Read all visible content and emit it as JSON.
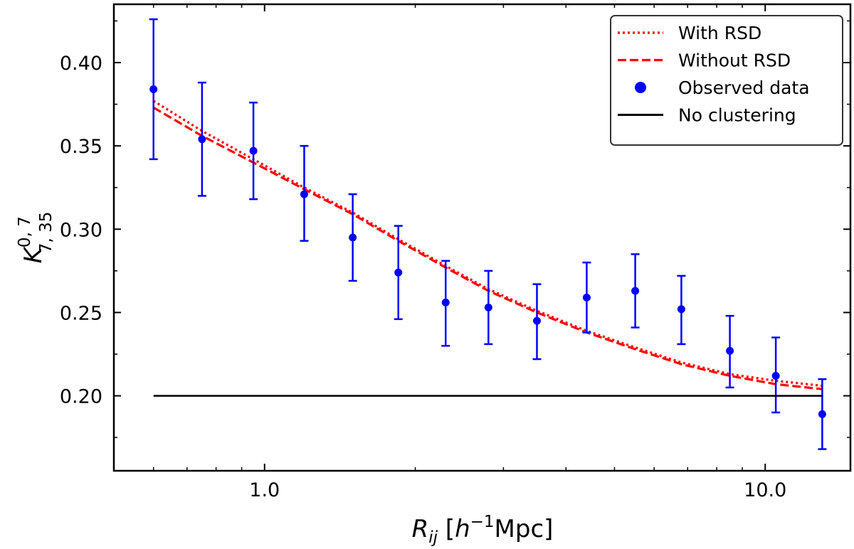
{
  "chart_data": {
    "type": "scatter",
    "title": "",
    "xscale": "log",
    "xlim": [
      0.5,
      14.8
    ],
    "ylim": [
      0.155,
      0.435
    ],
    "x_ticks": [
      {
        "value": 1.0,
        "label": "1.0"
      },
      {
        "value": 10.0,
        "label": "10.0"
      }
    ],
    "y_ticks": [
      {
        "value": 0.2,
        "label": "0.20"
      },
      {
        "value": 0.25,
        "label": "0.25"
      },
      {
        "value": 0.3,
        "label": "0.30"
      },
      {
        "value": 0.35,
        "label": "0.35"
      },
      {
        "value": 0.4,
        "label": "0.40"
      }
    ],
    "xlabel": {
      "main": "R",
      "sub": "ij",
      "bracket_open": " [",
      "unit_main": "h",
      "unit_sup": "−1",
      "unit_rest": "Mpc]"
    },
    "ylabel": {
      "main": "K",
      "sup": "0, 7",
      "sub": "7, 35"
    },
    "series": [
      {
        "name": "With RSD",
        "style": "dotted",
        "color": "#ff0000",
        "x": [
          0.6,
          0.75,
          0.95,
          1.2,
          1.5,
          1.85,
          2.3,
          2.8,
          3.5,
          4.4,
          5.5,
          6.8,
          8.5,
          10.5,
          13.0
        ],
        "y": [
          0.377,
          0.359,
          0.342,
          0.325,
          0.31,
          0.294,
          0.278,
          0.264,
          0.251,
          0.239,
          0.229,
          0.22,
          0.213,
          0.209,
          0.206
        ]
      },
      {
        "name": "Without RSD",
        "style": "dashed",
        "color": "#ff0000",
        "x": [
          0.6,
          0.75,
          0.95,
          1.2,
          1.5,
          1.85,
          2.3,
          2.8,
          3.5,
          4.4,
          5.5,
          6.8,
          8.5,
          10.5,
          13.0
        ],
        "y": [
          0.373,
          0.356,
          0.34,
          0.324,
          0.309,
          0.293,
          0.277,
          0.263,
          0.25,
          0.238,
          0.228,
          0.219,
          0.212,
          0.207,
          0.204
        ]
      },
      {
        "name": "Observed data",
        "style": "errorbar",
        "color": "#0000ff",
        "x": [
          0.6,
          0.75,
          0.95,
          1.2,
          1.5,
          1.85,
          2.3,
          2.8,
          3.5,
          4.4,
          5.5,
          6.8,
          8.5,
          10.5,
          13.0
        ],
        "y": [
          0.384,
          0.354,
          0.347,
          0.321,
          0.295,
          0.274,
          0.256,
          0.253,
          0.245,
          0.259,
          0.263,
          0.252,
          0.227,
          0.212,
          0.189
        ],
        "yerr_low": [
          0.342,
          0.32,
          0.318,
          0.293,
          0.269,
          0.246,
          0.23,
          0.231,
          0.222,
          0.238,
          0.241,
          0.231,
          0.205,
          0.19,
          0.168
        ],
        "yerr_high": [
          0.426,
          0.388,
          0.376,
          0.35,
          0.321,
          0.302,
          0.281,
          0.275,
          0.267,
          0.28,
          0.285,
          0.272,
          0.248,
          0.235,
          0.21
        ]
      },
      {
        "name": "No clustering",
        "style": "solid",
        "color": "#000000",
        "x": [
          0.6,
          13.0
        ],
        "y": [
          0.2,
          0.2
        ]
      }
    ],
    "legend": {
      "position": "top-right",
      "entries": [
        "With RSD",
        "Without RSD",
        "Observed data",
        "No clustering"
      ]
    }
  }
}
